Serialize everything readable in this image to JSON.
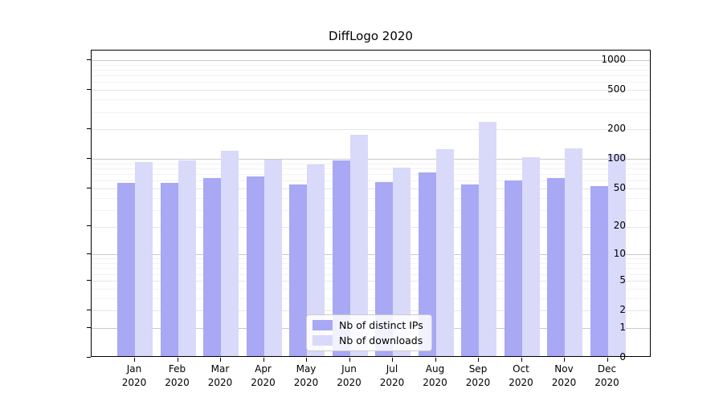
{
  "title": "DiffLogo 2020",
  "legend": {
    "items": [
      {
        "label": "Nb of distinct IPs",
        "color": "#a8a8f5"
      },
      {
        "label": "Nb of downloads",
        "color": "#d9d9fa"
      }
    ]
  },
  "chart_data": {
    "type": "bar",
    "title": "DiffLogo 2020",
    "categories": [
      "Jan",
      "Feb",
      "Mar",
      "Apr",
      "May",
      "Jun",
      "Jul",
      "Aug",
      "Sep",
      "Oct",
      "Nov",
      "Dec"
    ],
    "category_year": "2020",
    "series": [
      {
        "name": "Nb of distinct IPs",
        "color": "#a8a8f5",
        "values": [
          55,
          55,
          62,
          64,
          53,
          93,
          56,
          70,
          53,
          58,
          62,
          51
        ]
      },
      {
        "name": "Nb of downloads",
        "color": "#d9d9fa",
        "values": [
          90,
          93,
          116,
          95,
          85,
          170,
          79,
          120,
          230,
          101,
          123,
          108
        ]
      }
    ],
    "yscale": "log1p",
    "yticks": [
      0,
      1,
      2,
      5,
      10,
      20,
      50,
      100,
      200,
      500,
      1000
    ],
    "ylim": [
      0,
      1250
    ],
    "xlabel": "",
    "ylabel": "",
    "grid": "horizontal",
    "legend_position": "lower center"
  }
}
